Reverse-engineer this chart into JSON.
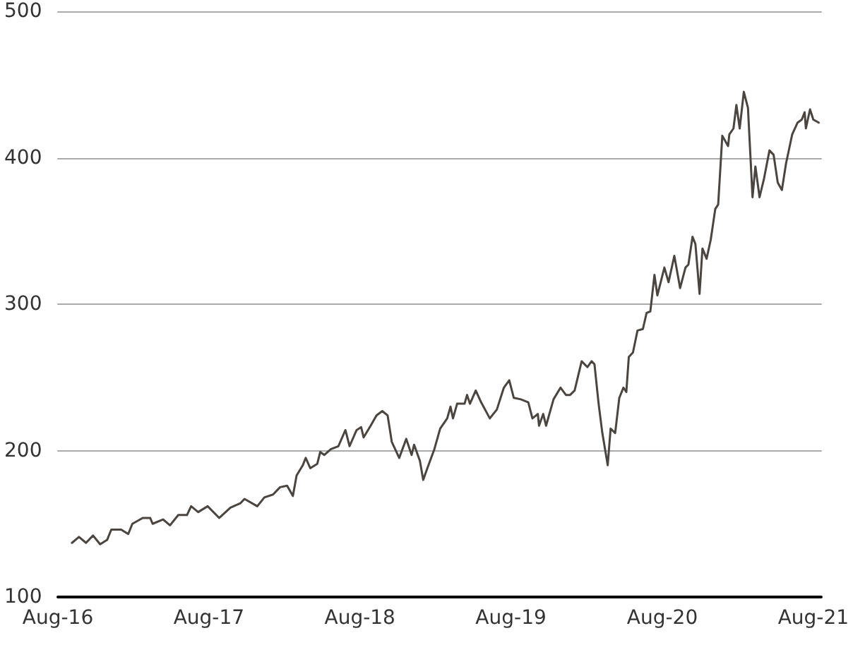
{
  "chart_data": {
    "type": "line",
    "grid": "y",
    "marker": "none",
    "line_style": "solid",
    "xlim": [
      "2016-08-01",
      "2021-08-20"
    ],
    "xticks": [
      {
        "value": "2016-08-01",
        "label": "Aug-16"
      },
      {
        "value": "2017-08-01",
        "label": "Aug-17"
      },
      {
        "value": "2018-08-01",
        "label": "Aug-18"
      },
      {
        "value": "2019-08-01",
        "label": "Aug-19"
      },
      {
        "value": "2020-08-01",
        "label": "Aug-20"
      },
      {
        "value": "2021-08-01",
        "label": "Aug-21"
      }
    ],
    "ylim": [
      100,
      500
    ],
    "yticks": [
      100,
      200,
      300,
      400,
      500
    ],
    "series": [
      {
        "color": "#4a4540",
        "x": [
          "2016-09-04",
          "2016-09-21",
          "2016-10-08",
          "2016-10-25",
          "2016-11-11",
          "2016-11-28",
          "2016-12-08",
          "2017-01-01",
          "2017-01-18",
          "2017-01-28",
          "2017-02-22",
          "2017-03-12",
          "2017-03-18",
          "2017-04-12",
          "2017-04-29",
          "2017-05-19",
          "2017-06-09",
          "2017-06-19",
          "2017-07-06",
          "2017-07-29",
          "2017-08-26",
          "2017-09-22",
          "2017-10-16",
          "2017-10-26",
          "2017-11-26",
          "2017-12-13",
          "2018-01-03",
          "2018-01-20",
          "2018-02-06",
          "2018-02-20",
          "2018-03-01",
          "2018-03-16",
          "2018-03-23",
          "2018-04-03",
          "2018-04-20",
          "2018-04-27",
          "2018-05-07",
          "2018-05-23",
          "2018-06-10",
          "2018-06-27",
          "2018-07-07",
          "2018-07-24",
          "2018-08-04",
          "2018-08-10",
          "2018-08-27",
          "2018-09-10",
          "2018-09-24",
          "2018-10-07",
          "2018-10-17",
          "2018-11-04",
          "2018-11-21",
          "2018-12-04",
          "2018-12-10",
          "2018-12-24",
          "2019-01-01",
          "2019-01-11",
          "2019-01-28",
          "2019-02-11",
          "2019-02-28",
          "2019-03-08",
          "2019-03-14",
          "2019-03-24",
          "2019-04-11",
          "2019-04-17",
          "2019-04-24",
          "2019-05-08",
          "2019-05-21",
          "2019-06-11",
          "2019-06-28",
          "2019-07-15",
          "2019-07-28",
          "2019-08-08",
          "2019-08-25",
          "2019-09-12",
          "2019-09-22",
          "2019-10-05",
          "2019-10-08",
          "2019-10-18",
          "2019-10-25",
          "2019-11-12",
          "2019-11-29",
          "2019-12-12",
          "2019-12-22",
          "2020-01-02",
          "2020-01-19",
          "2020-02-02",
          "2020-02-12",
          "2020-02-19",
          "2020-02-29",
          "2020-03-09",
          "2020-03-22",
          "2020-03-29",
          "2020-04-09",
          "2020-04-19",
          "2020-04-29",
          "2020-05-06",
          "2020-05-12",
          "2020-05-22",
          "2020-06-02",
          "2020-06-15",
          "2020-06-24",
          "2020-07-03",
          "2020-07-13",
          "2020-07-20",
          "2020-08-06",
          "2020-08-16",
          "2020-08-30",
          "2020-09-13",
          "2020-09-26",
          "2020-10-03",
          "2020-10-13",
          "2020-10-20",
          "2020-10-30",
          "2020-11-06",
          "2020-11-16",
          "2020-11-26",
          "2020-12-07",
          "2020-12-14",
          "2020-12-24",
          "2021-01-07",
          "2021-01-10",
          "2021-01-20",
          "2021-01-27",
          "2021-02-04",
          "2021-02-14",
          "2021-02-24",
          "2021-03-07",
          "2021-03-14",
          "2021-03-24",
          "2021-04-04",
          "2021-04-17",
          "2021-04-27",
          "2021-05-07",
          "2021-05-17",
          "2021-05-27",
          "2021-06-11",
          "2021-06-24",
          "2021-07-04",
          "2021-07-11",
          "2021-07-14",
          "2021-07-24",
          "2021-08-01",
          "2021-08-14"
        ],
        "values": [
          137,
          141,
          137,
          142,
          136,
          139,
          146,
          146,
          143,
          150,
          154,
          154,
          150,
          153,
          149,
          156,
          156,
          162,
          158,
          162,
          154,
          161,
          164,
          167,
          162,
          168,
          170,
          175,
          176,
          169,
          183,
          190,
          195,
          188,
          191,
          199,
          197,
          201,
          203,
          214,
          203,
          214,
          216,
          209,
          217,
          224,
          227,
          224,
          206,
          195,
          208,
          197,
          204,
          193,
          180,
          188,
          201,
          215,
          222,
          230,
          222,
          232,
          232,
          238,
          232,
          241,
          233,
          222,
          228,
          243,
          248,
          236,
          235,
          233,
          222,
          225,
          217,
          225,
          217,
          235,
          243,
          238,
          238,
          241,
          261,
          257,
          261,
          259,
          232,
          212,
          190,
          215,
          212,
          236,
          243,
          240,
          264,
          267,
          282,
          283,
          294,
          295,
          320,
          306,
          325,
          315,
          333,
          311,
          325,
          327,
          346,
          341,
          307,
          338,
          331,
          344,
          365,
          368,
          415,
          408,
          416,
          420,
          436,
          420,
          445,
          434,
          373,
          394,
          373,
          386,
          405,
          402,
          383,
          378,
          396,
          416,
          424,
          426,
          431,
          420,
          433,
          426,
          424
        ]
      }
    ]
  }
}
